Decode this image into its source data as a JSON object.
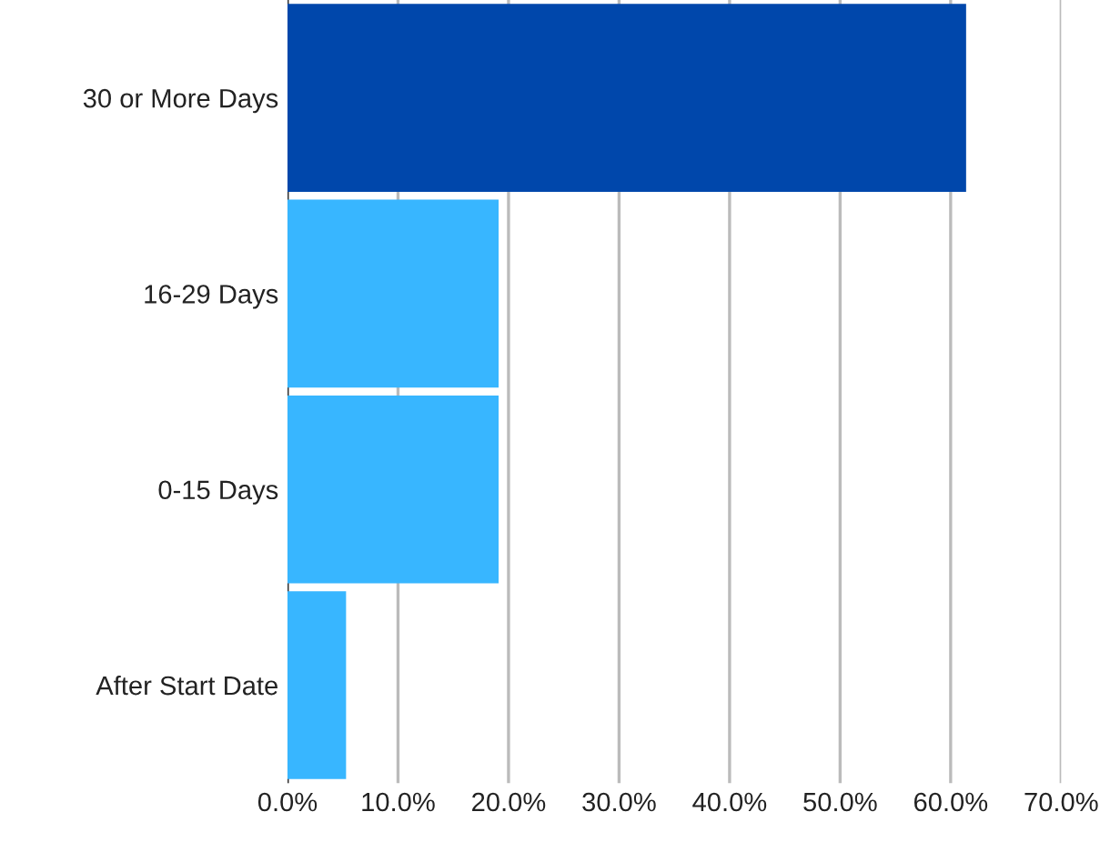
{
  "chart_data": {
    "type": "bar",
    "orientation": "horizontal",
    "categories": [
      "30 or More Days",
      "16-29 Days",
      "0-15 Days",
      "After Start Date"
    ],
    "values": [
      61.4,
      19.1,
      19.1,
      5.3
    ],
    "colors": [
      "#0047ab",
      "#38b6ff",
      "#38b6ff",
      "#38b6ff"
    ],
    "xlim": [
      0,
      70
    ],
    "xticks": [
      {
        "value": 0,
        "label": "0.0%"
      },
      {
        "value": 10,
        "label": "10.0%"
      },
      {
        "value": 20,
        "label": "20.0%"
      },
      {
        "value": 30,
        "label": "30.0%"
      },
      {
        "value": 40,
        "label": "40.0%"
      },
      {
        "value": 50,
        "label": "50.0%"
      },
      {
        "value": 60,
        "label": "60.0%"
      },
      {
        "value": 70,
        "label": "70.0%"
      }
    ],
    "grid": "x"
  }
}
